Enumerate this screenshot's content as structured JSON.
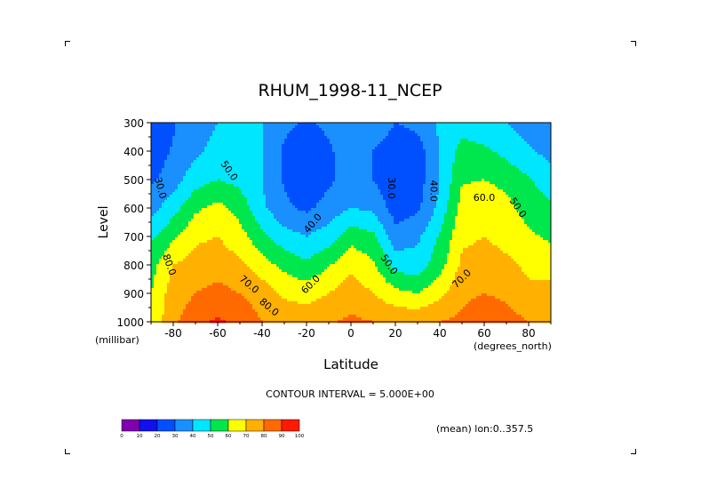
{
  "chart_data": {
    "type": "heatmap",
    "title": "RHUM_1998-11_NCEP",
    "xlabel": "Latitude",
    "ylabel": "Level",
    "x_unit": "(degrees_north)",
    "y_unit": "(millibar)",
    "xlim": [
      -90,
      90
    ],
    "ylim": [
      1000,
      300
    ],
    "x_ticks": [
      -80,
      -60,
      -40,
      -20,
      0,
      20,
      40,
      60,
      80
    ],
    "y_ticks": [
      300,
      400,
      500,
      600,
      700,
      800,
      900,
      1000
    ],
    "contour_interval_text": "CONTOUR INTERVAL = 5.000E+00",
    "footnote": "(mean) lon:0..357.5",
    "colorbar": {
      "labels": [
        "0",
        "10",
        "20",
        "30",
        "40",
        "50",
        "60",
        "70",
        "80",
        "90",
        "100"
      ],
      "colors": [
        "#8000b0",
        "#1010f0",
        "#0050ff",
        "#1a90ff",
        "#00e6ff",
        "#00e64d",
        "#ffff00",
        "#ffb000",
        "#ff6a00",
        "#ff1a00"
      ]
    },
    "contour_labels": [
      {
        "text": "30.0",
        "lat": -86,
        "lev": 530,
        "rot": 75
      },
      {
        "text": "50.0",
        "lat": -55,
        "lev": 470,
        "rot": 55
      },
      {
        "text": "40.0",
        "lat": -17,
        "lev": 655,
        "rot": -50
      },
      {
        "text": "30.0",
        "lat": 18,
        "lev": 530,
        "rot": 90
      },
      {
        "text": "40.0",
        "lat": 37,
        "lev": 540,
        "rot": 90
      },
      {
        "text": "50.0",
        "lat": 17,
        "lev": 800,
        "rot": 55
      },
      {
        "text": "60.0",
        "lat": 60,
        "lev": 565,
        "rot": 0
      },
      {
        "text": "50.0",
        "lat": 75,
        "lev": 600,
        "rot": 55
      },
      {
        "text": "80.0",
        "lat": -82,
        "lev": 800,
        "rot": 70
      },
      {
        "text": "70.0",
        "lat": -46,
        "lev": 870,
        "rot": 40
      },
      {
        "text": "60.0",
        "lat": -18,
        "lev": 870,
        "rot": -45
      },
      {
        "text": "80.0",
        "lat": -37,
        "lev": 950,
        "rot": 40
      },
      {
        "text": "70.0",
        "lat": 50,
        "lev": 850,
        "rot": -45
      }
    ],
    "lat_grid": [
      -90,
      -80,
      -70,
      -60,
      -50,
      -40,
      -30,
      -20,
      -10,
      0,
      10,
      20,
      30,
      40,
      50,
      60,
      70,
      80,
      90
    ],
    "lev_grid": [
      300,
      400,
      500,
      600,
      700,
      800,
      900,
      1000
    ],
    "values": [
      [
        20,
        29,
        36,
        40,
        42,
        40,
        33,
        28,
        33,
        39,
        40,
        30,
        33,
        42,
        45,
        43,
        40,
        36,
        33
      ],
      [
        24,
        31,
        38,
        43,
        44,
        40,
        28,
        22,
        28,
        37,
        30,
        22,
        25,
        40,
        54,
        52,
        47,
        41,
        37
      ],
      [
        28,
        35,
        46,
        50,
        47,
        40,
        29,
        22,
        28,
        35,
        30,
        22,
        25,
        40,
        59,
        60,
        57,
        51,
        44
      ],
      [
        36,
        46,
        58,
        63,
        56,
        42,
        32,
        28,
        34,
        40,
        38,
        25,
        28,
        43,
        64,
        67,
        63,
        56,
        52
      ],
      [
        48,
        58,
        68,
        70,
        64,
        53,
        44,
        40,
        45,
        56,
        52,
        34,
        38,
        51,
        68,
        70,
        67,
        62,
        58
      ],
      [
        56,
        70,
        74,
        76,
        72,
        64,
        57,
        52,
        59,
        68,
        62,
        46,
        44,
        56,
        72,
        74,
        72,
        68,
        66
      ],
      [
        60,
        75,
        80,
        83,
        80,
        76,
        68,
        66,
        70,
        75,
        70,
        63,
        60,
        67,
        78,
        80,
        78,
        72,
        74
      ],
      [
        62,
        78,
        86,
        92,
        86,
        80,
        77,
        76,
        79,
        82,
        80,
        78,
        78,
        80,
        82,
        86,
        84,
        80,
        80
      ]
    ]
  }
}
